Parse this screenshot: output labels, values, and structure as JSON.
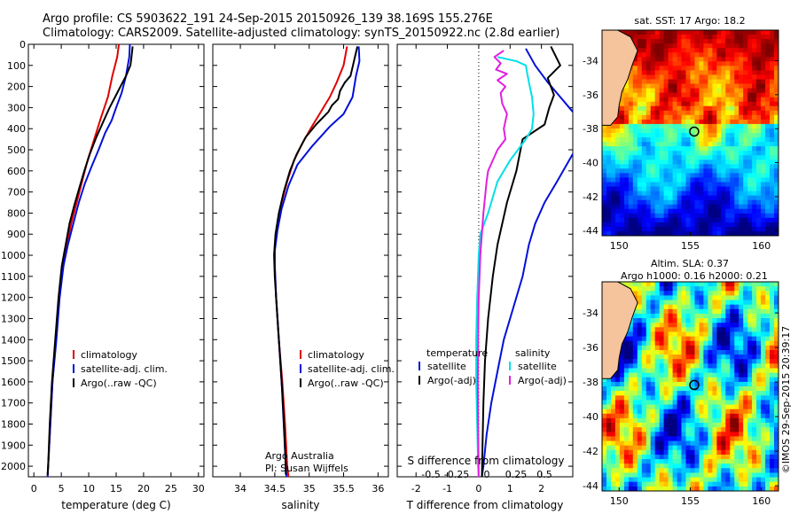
{
  "header": {
    "line1": "Argo profile: CS 5903622_191 24-Sep-2015 20150926_139 38.169S 155.276E",
    "line2": "Climatology: CARS2009. Satellite-adjusted climatology: synTS_20150922.nc (2.8d earlier)"
  },
  "colors": {
    "climatology": "#e00000",
    "satellite": "#0010d8",
    "argo": "#000000",
    "salinity_sat": "#00e0e8",
    "salinity_argo": "#e020e0",
    "land": "#f5c49c"
  },
  "chart_data": [
    {
      "type": "line",
      "id": "temperature",
      "xlabel": "temperature (deg C)",
      "ylim": [
        0,
        2050
      ],
      "xlim": [
        -1,
        31
      ],
      "xticks": [
        0,
        5,
        10,
        15,
        20,
        25,
        30
      ],
      "yticks": [
        0,
        100,
        200,
        300,
        400,
        500,
        600,
        700,
        800,
        900,
        1000,
        1100,
        1200,
        1300,
        1400,
        1500,
        1600,
        1700,
        1800,
        1900,
        2000
      ],
      "legend": [
        "climatology",
        "satellite-adj. clim.",
        "Argo(..raw -QC)"
      ],
      "series": [
        {
          "name": "climatology",
          "color": "#e00000",
          "points": [
            [
              15.5,
              0
            ],
            [
              15.2,
              60
            ],
            [
              14.3,
              150
            ],
            [
              13.5,
              250
            ],
            [
              12.2,
              350
            ],
            [
              11,
              450
            ],
            [
              9.8,
              550
            ],
            [
              8.8,
              650
            ],
            [
              7.8,
              750
            ],
            [
              6.8,
              850
            ],
            [
              6,
              950
            ],
            [
              5.2,
              1050
            ],
            [
              4.6,
              1200
            ],
            [
              4,
              1400
            ],
            [
              3.4,
              1600
            ],
            [
              3,
              1800
            ],
            [
              2.6,
              2000
            ],
            [
              2.5,
              2050
            ]
          ]
        },
        {
          "name": "satellite-adj. clim.",
          "color": "#0010d8",
          "points": [
            [
              17.5,
              0
            ],
            [
              17.4,
              60
            ],
            [
              16.8,
              150
            ],
            [
              16,
              230
            ],
            [
              15,
              300
            ],
            [
              14.2,
              360
            ],
            [
              13,
              420
            ],
            [
              11.8,
              500
            ],
            [
              10.5,
              580
            ],
            [
              9.3,
              660
            ],
            [
              8.2,
              750
            ],
            [
              7.2,
              850
            ],
            [
              6.2,
              950
            ],
            [
              5.4,
              1050
            ],
            [
              4.7,
              1200
            ],
            [
              4.1,
              1400
            ],
            [
              3.4,
              1600
            ],
            [
              3,
              1800
            ],
            [
              2.6,
              2000
            ],
            [
              2.5,
              2050
            ]
          ]
        },
        {
          "name": "Argo(..raw -QC)",
          "color": "#000000",
          "points": [
            [
              18,
              10
            ],
            [
              17.8,
              60
            ],
            [
              17.6,
              100
            ],
            [
              16.8,
              150
            ],
            [
              15.8,
              200
            ],
            [
              14.8,
              250
            ],
            [
              13.8,
              300
            ],
            [
              12.6,
              370
            ],
            [
              11.4,
              440
            ],
            [
              10.2,
              520
            ],
            [
              9.2,
              600
            ],
            [
              8.3,
              680
            ],
            [
              7.4,
              760
            ],
            [
              6.5,
              850
            ],
            [
              5.8,
              950
            ],
            [
              5.1,
              1050
            ],
            [
              4.5,
              1200
            ],
            [
              3.9,
              1400
            ],
            [
              3.3,
              1600
            ],
            [
              2.9,
              1800
            ],
            [
              2.6,
              2000
            ],
            [
              2.5,
              2040
            ]
          ]
        }
      ]
    },
    {
      "type": "line",
      "id": "salinity",
      "xlabel": "salinity",
      "ylim": [
        0,
        2050
      ],
      "xlim": [
        33.6,
        36.15
      ],
      "xticks": [
        34,
        34.5,
        35,
        35.5,
        36
      ],
      "legend": [
        "climatology",
        "satellite-adj. clim.",
        "Argo(..raw -QC)"
      ],
      "annotation": [
        "Argo Australia",
        "PI: Susan Wijffels"
      ],
      "series": [
        {
          "name": "climatology",
          "color": "#e00000",
          "points": [
            [
              35.55,
              10
            ],
            [
              35.5,
              100
            ],
            [
              35.4,
              180
            ],
            [
              35.3,
              250
            ],
            [
              35.15,
              330
            ],
            [
              35.02,
              400
            ],
            [
              34.9,
              470
            ],
            [
              34.78,
              550
            ],
            [
              34.68,
              650
            ],
            [
              34.6,
              750
            ],
            [
              34.54,
              850
            ],
            [
              34.5,
              950
            ],
            [
              34.5,
              1050
            ],
            [
              34.52,
              1200
            ],
            [
              34.56,
              1400
            ],
            [
              34.61,
              1600
            ],
            [
              34.65,
              1800
            ],
            [
              34.68,
              2000
            ],
            [
              34.7,
              2050
            ]
          ]
        },
        {
          "name": "satellite-adj. clim.",
          "color": "#0010d8",
          "points": [
            [
              35.72,
              10
            ],
            [
              35.73,
              80
            ],
            [
              35.68,
              150
            ],
            [
              35.63,
              250
            ],
            [
              35.5,
              330
            ],
            [
              35.3,
              390
            ],
            [
              35.05,
              480
            ],
            [
              34.83,
              570
            ],
            [
              34.7,
              670
            ],
            [
              34.6,
              780
            ],
            [
              34.54,
              880
            ],
            [
              34.5,
              980
            ],
            [
              34.5,
              1050
            ],
            [
              34.52,
              1200
            ],
            [
              34.56,
              1400
            ],
            [
              34.6,
              1600
            ],
            [
              34.63,
              1800
            ],
            [
              34.66,
              2000
            ],
            [
              34.67,
              2050
            ]
          ]
        },
        {
          "name": "Argo(..raw -QC)",
          "color": "#000000",
          "points": [
            [
              35.7,
              10
            ],
            [
              35.65,
              80
            ],
            [
              35.6,
              150
            ],
            [
              35.52,
              180
            ],
            [
              35.45,
              220
            ],
            [
              35.42,
              260
            ],
            [
              35.33,
              290
            ],
            [
              35.28,
              320
            ],
            [
              35.1,
              380
            ],
            [
              34.95,
              440
            ],
            [
              34.82,
              520
            ],
            [
              34.72,
              600
            ],
            [
              34.63,
              700
            ],
            [
              34.56,
              800
            ],
            [
              34.51,
              900
            ],
            [
              34.49,
              1000
            ],
            [
              34.5,
              1100
            ],
            [
              34.53,
              1250
            ],
            [
              34.57,
              1450
            ],
            [
              34.61,
              1650
            ],
            [
              34.64,
              1850
            ],
            [
              34.66,
              2000
            ],
            [
              34.66,
              2040
            ]
          ]
        }
      ]
    },
    {
      "type": "line",
      "id": "difference",
      "xlabel": "T difference from climatology",
      "top_xlabel": "S difference from climatology",
      "ylim": [
        0,
        2050
      ],
      "xlim": [
        -2.6,
        3
      ],
      "xticks": [
        -2,
        -1,
        0,
        1,
        2
      ],
      "xticklabels": [
        "-2",
        "-1",
        "0",
        "1",
        "2"
      ],
      "top_xticks": [
        "-0.5",
        "-0.25",
        "0",
        "0.25",
        "0.5"
      ],
      "legend_left_title": "temperature",
      "legend_right_title": "salinity",
      "legend": [
        "satellite",
        "Argo(-adj)",
        "satellite",
        "Argo(-adj)"
      ],
      "series": [
        {
          "name": "satellite",
          "color": "#0010d8",
          "points": [
            [
              1.5,
              20
            ],
            [
              1.8,
              100
            ],
            [
              2.2,
              180
            ],
            [
              2.6,
              250
            ],
            [
              3,
              320
            ]
          ]
        },
        {
          "name": "satellite",
          "color": "#0010d8",
          "points": [
            [
              3,
              520
            ],
            [
              2.5,
              650
            ],
            [
              2.1,
              750
            ],
            [
              1.8,
              850
            ],
            [
              1.6,
              950
            ],
            [
              1.4,
              1100
            ],
            [
              1.1,
              1250
            ],
            [
              0.8,
              1400
            ],
            [
              0.6,
              1550
            ],
            [
              0.4,
              1700
            ],
            [
              0.25,
              1850
            ],
            [
              0.15,
              2000
            ],
            [
              0.1,
              2050
            ]
          ]
        },
        {
          "name": "Argo(-adj)",
          "color": "#000000",
          "points": [
            [
              2.3,
              10
            ],
            [
              2.6,
              100
            ],
            [
              2.2,
              160
            ],
            [
              2.4,
              240
            ],
            [
              2.25,
              300
            ],
            [
              2.1,
              380
            ],
            [
              1.4,
              450
            ],
            [
              1.2,
              600
            ],
            [
              0.9,
              750
            ],
            [
              0.6,
              950
            ],
            [
              0.45,
              1100
            ],
            [
              0.3,
              1300
            ],
            [
              0.2,
              1500
            ],
            [
              0.15,
              1700
            ],
            [
              0.12,
              1900
            ],
            [
              0.1,
              2050
            ]
          ]
        },
        {
          "name": "satellite",
          "color": "#00e0e8",
          "points": [
            [
              0.6,
              60
            ],
            [
              1.2,
              80
            ],
            [
              1.5,
              100
            ],
            [
              1.6,
              180
            ],
            [
              1.7,
              250
            ],
            [
              1.75,
              330
            ],
            [
              1.7,
              400
            ],
            [
              1.5,
              450
            ],
            [
              1,
              550
            ],
            [
              0.6,
              650
            ],
            [
              0.3,
              800
            ],
            [
              0.05,
              900
            ],
            [
              0,
              1000
            ],
            [
              -0.05,
              1200
            ],
            [
              -0.08,
              1400
            ],
            [
              -0.08,
              1600
            ],
            [
              -0.05,
              1800
            ],
            [
              -0.02,
              2000
            ],
            [
              0,
              2050
            ]
          ]
        },
        {
          "name": "Argo(-adj)",
          "color": "#e020e0",
          "points": [
            [
              0.8,
              30
            ],
            [
              0.5,
              60
            ],
            [
              0.7,
              90
            ],
            [
              0.55,
              120
            ],
            [
              0.9,
              140
            ],
            [
              0.6,
              170
            ],
            [
              0.85,
              200
            ],
            [
              0.7,
              230
            ],
            [
              0.75,
              280
            ],
            [
              0.9,
              330
            ],
            [
              0.8,
              400
            ],
            [
              0.85,
              450
            ],
            [
              0.6,
              500
            ],
            [
              0.45,
              550
            ],
            [
              0.3,
              600
            ],
            [
              0.25,
              650
            ],
            [
              0.15,
              800
            ],
            [
              0.05,
              1000
            ],
            [
              0,
              1200
            ],
            [
              -0.02,
              1400
            ],
            [
              -0.03,
              1600
            ],
            [
              -0.02,
              1800
            ],
            [
              0,
              2050
            ]
          ]
        }
      ]
    },
    {
      "type": "heatmap",
      "id": "sst_map",
      "title": "sat. SST: 17 Argo: 18.2",
      "xticks": [
        150,
        155,
        160
      ],
      "yticks": [
        -34,
        -36,
        -38,
        -40,
        -42,
        -44
      ],
      "xlim": [
        148.8,
        161.2
      ],
      "ylim": [
        -44.3,
        -32.2
      ],
      "argo_position": {
        "lon": 155.276,
        "lat": -38.169
      }
    },
    {
      "type": "heatmap",
      "id": "sla_map",
      "title": "Altim. SLA: 0.37",
      "subtitle": "Argo h1000: 0.16 h2000: 0.21",
      "xticks": [
        150,
        155,
        160
      ],
      "yticks": [
        -34,
        -36,
        -38,
        -40,
        -42,
        -44
      ],
      "xlim": [
        148.8,
        161.2
      ],
      "ylim": [
        -44.3,
        -32.2
      ],
      "argo_position": {
        "lon": 155.276,
        "lat": -38.169
      },
      "credit": "©IMOS 29-Sep-2015 20:39:17"
    }
  ]
}
